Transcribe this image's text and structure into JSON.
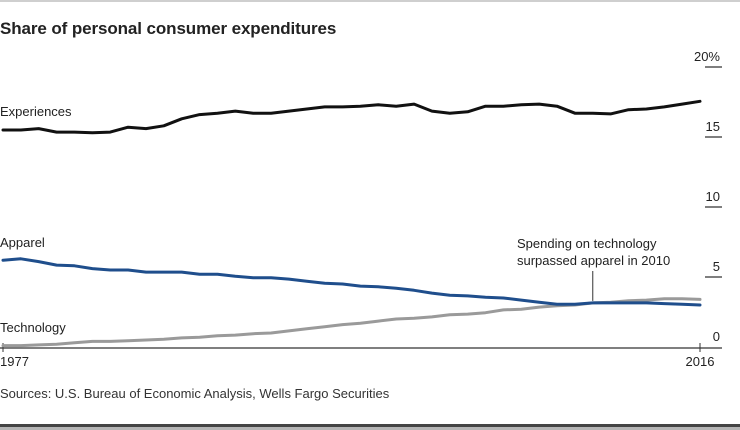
{
  "chart_data": {
    "type": "line",
    "title": "Share of personal consumer expenditures",
    "source": "Sources: U.S. Bureau of Economic Analysis, Wells Fargo Securities",
    "xlabel": "",
    "ylabel": "",
    "x": [
      1977,
      1978,
      1979,
      1980,
      1981,
      1982,
      1983,
      1984,
      1985,
      1986,
      1987,
      1988,
      1989,
      1990,
      1991,
      1992,
      1993,
      1994,
      1995,
      1996,
      1997,
      1998,
      1999,
      2000,
      2001,
      2002,
      2003,
      2004,
      2005,
      2006,
      2007,
      2008,
      2009,
      2010,
      2011,
      2012,
      2013,
      2014,
      2015,
      2016
    ],
    "xlim": [
      1977,
      2016
    ],
    "x_tick_labels": [
      {
        "value": 1977,
        "label": "1977"
      },
      {
        "value": 2016,
        "label": "2016"
      }
    ],
    "ylim": [
      0,
      20
    ],
    "y_ticks": [
      {
        "value": 20,
        "label": "20%"
      },
      {
        "value": 15,
        "label": "15"
      },
      {
        "value": 10,
        "label": "10"
      },
      {
        "value": 5,
        "label": "5"
      },
      {
        "value": 0,
        "label": "0"
      }
    ],
    "y_axis_side": "right",
    "grid": false,
    "series": [
      {
        "name": "Experiences",
        "color": "#111111",
        "values": [
          15.5,
          15.5,
          15.6,
          15.35,
          15.35,
          15.3,
          15.35,
          15.7,
          15.6,
          15.8,
          16.3,
          16.6,
          16.7,
          16.85,
          16.7,
          16.7,
          16.85,
          17.0,
          17.15,
          17.15,
          17.2,
          17.3,
          17.2,
          17.35,
          16.85,
          16.7,
          16.8,
          17.2,
          17.2,
          17.3,
          17.35,
          17.2,
          16.7,
          16.7,
          16.65,
          16.95,
          17.0,
          17.15,
          17.35,
          17.55
        ]
      },
      {
        "name": "Apparel",
        "color": "#1f4e8c",
        "values": [
          6.2,
          6.3,
          6.1,
          5.85,
          5.8,
          5.6,
          5.5,
          5.5,
          5.35,
          5.35,
          5.35,
          5.2,
          5.2,
          5.05,
          4.95,
          4.95,
          4.85,
          4.7,
          4.55,
          4.5,
          4.35,
          4.3,
          4.2,
          4.05,
          3.85,
          3.7,
          3.65,
          3.55,
          3.5,
          3.35,
          3.2,
          3.05,
          3.05,
          3.15,
          3.15,
          3.15,
          3.15,
          3.1,
          3.05,
          3.0
        ]
      },
      {
        "name": "Technology",
        "color": "#9a9a9a",
        "values": [
          0.1,
          0.1,
          0.15,
          0.2,
          0.3,
          0.4,
          0.4,
          0.45,
          0.5,
          0.55,
          0.65,
          0.7,
          0.8,
          0.85,
          0.95,
          1.0,
          1.15,
          1.3,
          1.45,
          1.6,
          1.7,
          1.85,
          2.0,
          2.05,
          2.15,
          2.3,
          2.35,
          2.45,
          2.65,
          2.7,
          2.85,
          2.95,
          3.0,
          3.15,
          3.2,
          3.3,
          3.35,
          3.45,
          3.45,
          3.4
        ]
      }
    ],
    "annotations": [
      {
        "x": 2010,
        "y": 3.15,
        "lines": [
          "Spending on technology",
          "surpassed apparel in 2010"
        ]
      }
    ],
    "legend": "inline-labels-left"
  }
}
